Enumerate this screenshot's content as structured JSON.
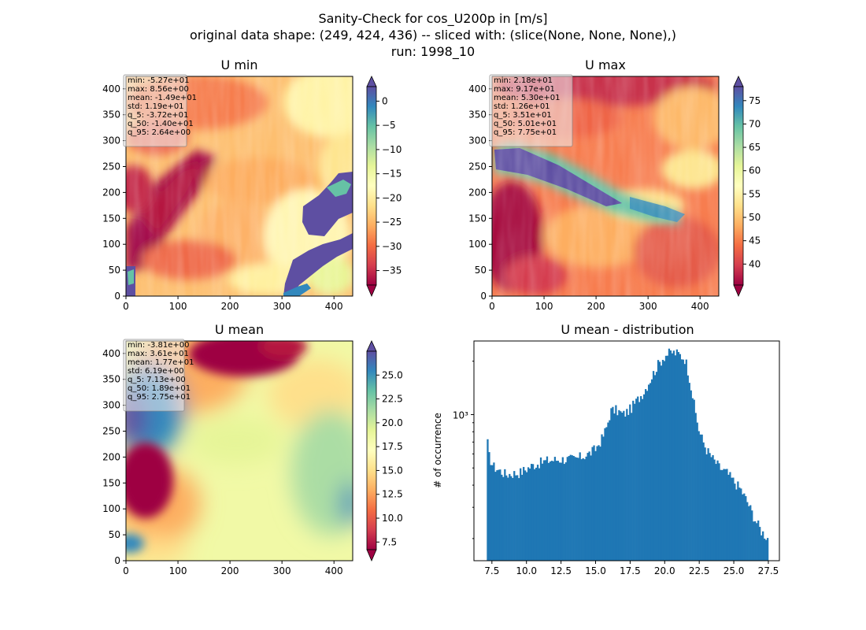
{
  "figure": {
    "suptitle_lines": [
      "Sanity-Check for cos_U200p in [m/s]",
      "original data shape: (249, 424, 436) -- sliced with: (slice(None, None, None),)",
      "run: 1998_10"
    ]
  },
  "colors": {
    "hist": "#1f77b4",
    "colormap": "Spectral"
  },
  "panels": {
    "umin": {
      "title": "U min",
      "x_ticks": [
        0,
        100,
        200,
        300,
        400
      ],
      "y_ticks": [
        0,
        50,
        100,
        150,
        200,
        250,
        300,
        350,
        400
      ],
      "stats": [
        "min: -5.27e+01",
        "max: 8.56e+00",
        "mean: -1.49e+01",
        "std: 1.19e+01",
        "q_5: -3.72e+01",
        "q_50: -1.40e+01",
        "q_95: 2.64e+00"
      ],
      "colorbar": {
        "min": -38,
        "max": 3,
        "ticks": [
          -35,
          -30,
          -25,
          -20,
          -15,
          -10,
          -5,
          0
        ]
      }
    },
    "umax": {
      "title": "U max",
      "x_ticks": [
        0,
        100,
        200,
        300,
        400
      ],
      "y_ticks": [
        0,
        50,
        100,
        150,
        200,
        250,
        300,
        350,
        400
      ],
      "stats": [
        "min: 2.18e+01",
        "max: 9.17e+01",
        "mean: 5.30e+01",
        "std: 1.26e+01",
        "q_5: 3.51e+01",
        "q_50: 5.01e+01",
        "q_95: 7.75e+01"
      ],
      "colorbar": {
        "min": 35.5,
        "max": 78,
        "ticks": [
          40,
          45,
          50,
          55,
          60,
          65,
          70,
          75
        ]
      }
    },
    "umean": {
      "title": "U mean",
      "x_ticks": [
        0,
        100,
        200,
        300,
        400
      ],
      "y_ticks": [
        0,
        50,
        100,
        150,
        200,
        250,
        300,
        350,
        400
      ],
      "stats": [
        "min: -3.81e+00",
        "max: 3.61e+01",
        "mean: 1.77e+01",
        "std: 6.19e+00",
        "q_5: 7.13e+00",
        "q_50: 1.89e+01",
        "q_95: 2.75e+01"
      ],
      "colorbar": {
        "min": 6.7,
        "max": 27.5,
        "ticks": [
          7.5,
          10.0,
          12.5,
          15.0,
          17.5,
          20.0,
          22.5,
          25.0
        ]
      },
      "colorbar_tick_labels": [
        "7.5",
        "10.0",
        "12.5",
        "15.0",
        "17.5",
        "20.0",
        "22.5",
        "25.0"
      ]
    }
  },
  "chart_data": {
    "type": "bar",
    "title": "U mean - distribution",
    "xlabel": "",
    "ylabel": "# of occurrence",
    "y_scale": "log",
    "xlim": [
      6.2,
      28.3
    ],
    "ylim": [
      150,
      2600
    ],
    "x_ticks": [
      7.5,
      10.0,
      12.5,
      15.0,
      17.5,
      20.0,
      22.5,
      25.0,
      27.5
    ],
    "x_tick_labels": [
      "7.5",
      "10.0",
      "12.5",
      "15.0",
      "17.5",
      "20.0",
      "22.5",
      "25.0",
      "27.5"
    ],
    "y_tick_labels": [
      "10³"
    ],
    "y_tick_values": [
      1000
    ],
    "bin_edges_range": [
      7.13,
      27.5
    ],
    "profile_x": [
      7.13,
      7.3,
      7.6,
      8.5,
      9.5,
      10.5,
      11.5,
      12.5,
      13.5,
      14.5,
      15.0,
      15.5,
      15.8,
      16.1,
      16.5,
      17.0,
      17.5,
      18.0,
      18.5,
      19.0,
      19.5,
      20.0,
      20.5,
      21.0,
      21.5,
      21.8,
      22.2,
      22.5,
      23.0,
      23.5,
      24.0,
      24.5,
      25.0,
      25.5,
      26.0,
      26.5,
      27.0,
      27.5
    ],
    "profile_y": [
      750,
      580,
      510,
      460,
      470,
      520,
      550,
      560,
      560,
      600,
      640,
      740,
      850,
      1050,
      1060,
      1000,
      1070,
      1200,
      1350,
      1600,
      1900,
      2150,
      2250,
      2200,
      2050,
      1600,
      1050,
      800,
      640,
      560,
      500,
      470,
      420,
      380,
      320,
      260,
      220,
      200
    ]
  }
}
